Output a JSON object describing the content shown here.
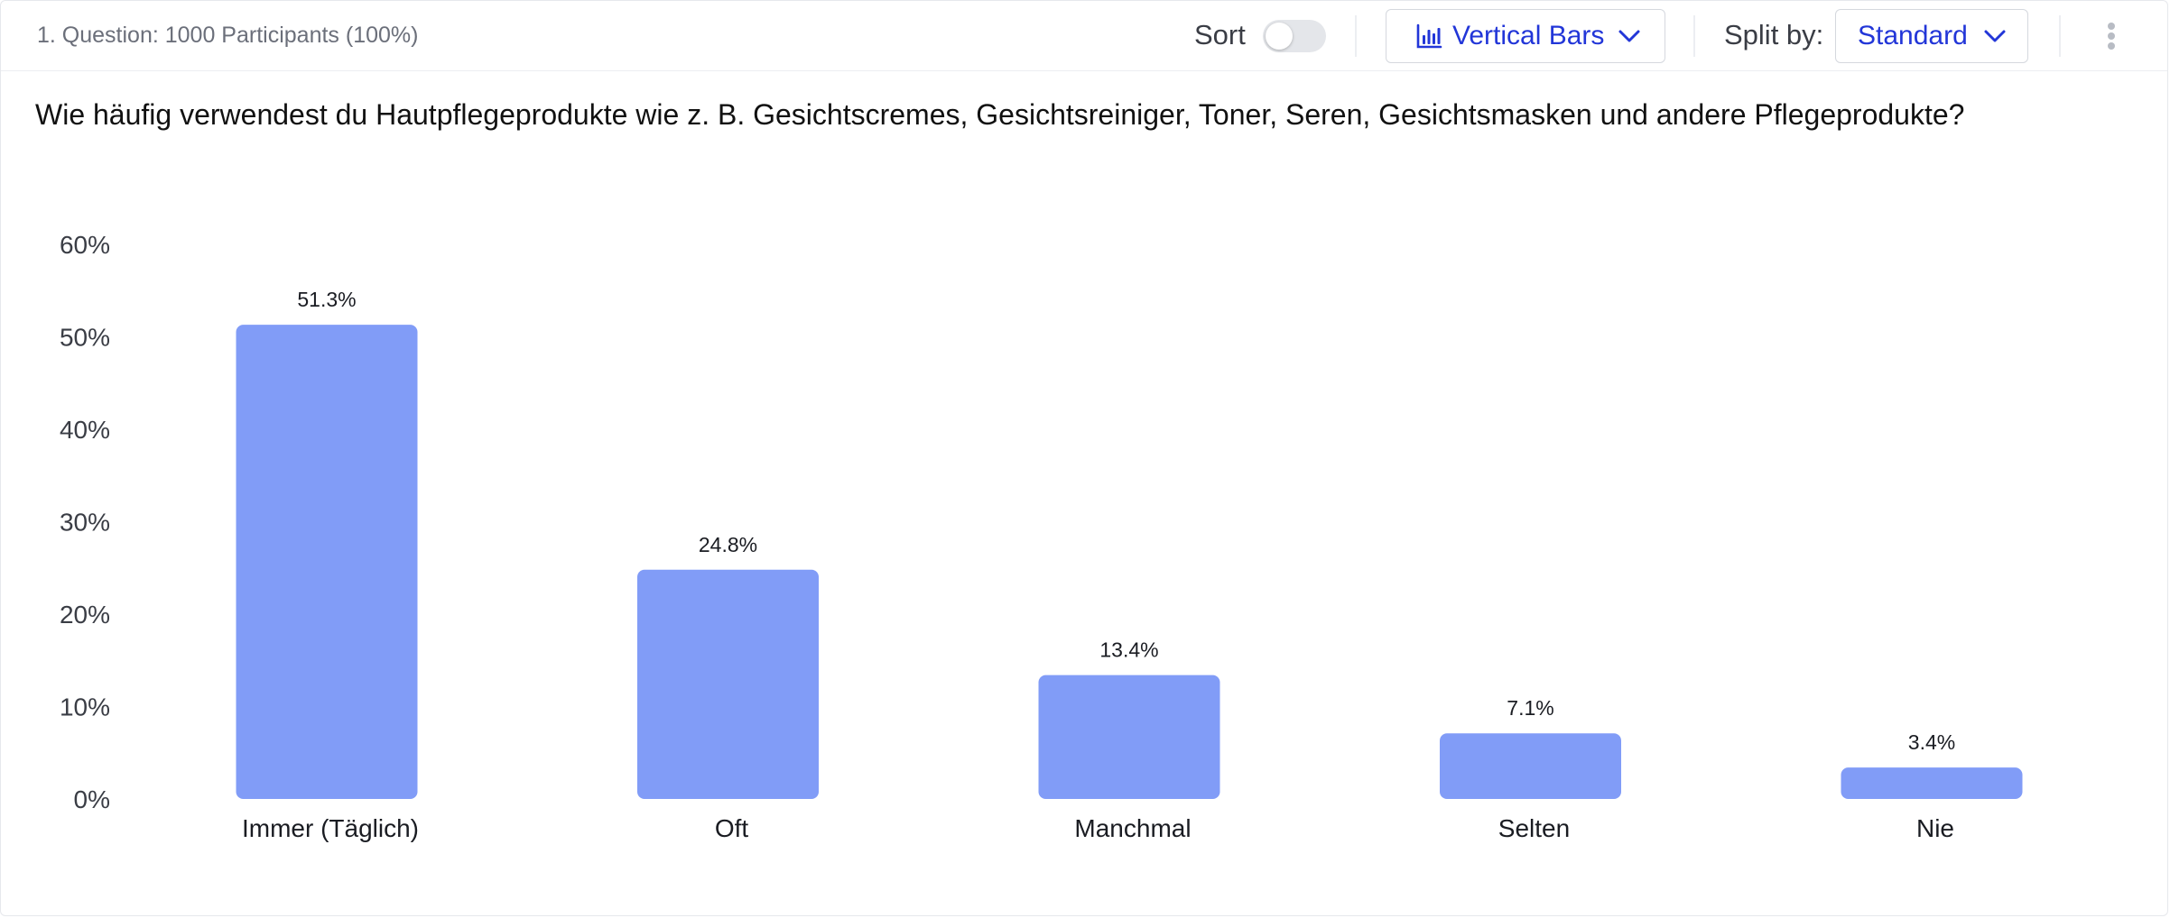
{
  "header": {
    "participants": "1. Question: 1000 Participants (100%)",
    "sort_label": "Sort",
    "sort_enabled": false,
    "chart_type_label": "Vertical Bars",
    "chart_type_icon": "bar-chart-icon",
    "split_label": "Split by:",
    "split_value": "Standard",
    "more_icon": "more-vertical-icon"
  },
  "question": {
    "text": "Wie häufig verwendest du Hautpflegeprodukte wie z. B. Gesichtscremes, Gesichtsreiniger, Toner, Seren, Gesichtsmasken und andere Pflegeprodukte?"
  },
  "colors": {
    "bar": "#819cf7",
    "accent": "#2236d8"
  },
  "chart_data": {
    "type": "bar",
    "categories": [
      "Immer (Täglich)",
      "Oft",
      "Manchmal",
      "Selten",
      "Nie"
    ],
    "values": [
      51.3,
      24.8,
      13.4,
      7.1,
      3.4
    ],
    "value_labels": [
      "51.3%",
      "24.8%",
      "13.4%",
      "7.1%",
      "3.4%"
    ],
    "yticks": [
      0,
      10,
      20,
      30,
      40,
      50,
      60
    ],
    "ytick_labels": [
      "0%",
      "10%",
      "20%",
      "30%",
      "40%",
      "50%",
      "60%"
    ],
    "ylim": [
      0,
      60
    ],
    "unit": "%",
    "grid": false,
    "legend": "none"
  }
}
